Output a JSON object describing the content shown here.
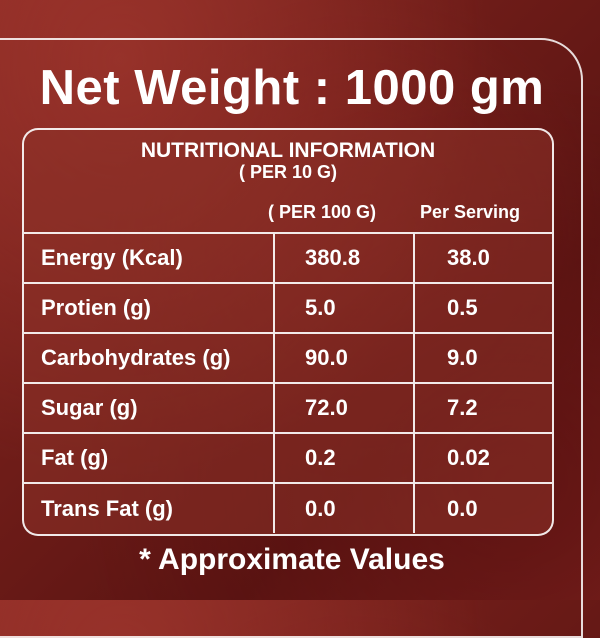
{
  "net_weight": "Net Weight : 1000 gm",
  "panel": {
    "heading": "NUTRITIONAL INFORMATION",
    "subheading": "( PER 10 G)",
    "columns": [
      "( PER 100 G)",
      "Per Serving"
    ],
    "rows": [
      {
        "name": "Energy (Kcal)",
        "per100": "380.8",
        "serving": "38.0"
      },
      {
        "name": "Protien (g)",
        "per100": "5.0",
        "serving": "0.5"
      },
      {
        "name": "Carbohydrates (g)",
        "per100": "90.0",
        "serving": "9.0"
      },
      {
        "name": "Sugar (g)",
        "per100": "72.0",
        "serving": "7.2"
      },
      {
        "name": "Fat (g)",
        "per100": "0.2",
        "serving": "0.02"
      },
      {
        "name": "Trans Fat (g)",
        "per100": "0.0",
        "serving": "0.0"
      }
    ]
  },
  "footnote": "* Approximate Values",
  "colors": {
    "background": "#6e1c18",
    "panel": "#8c3228",
    "text": "#ffffff"
  }
}
